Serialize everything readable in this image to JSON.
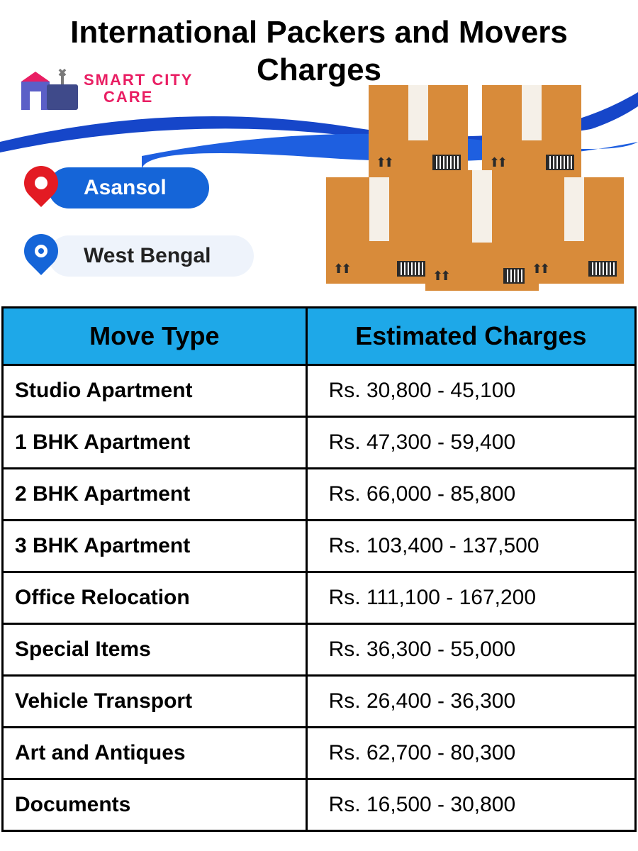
{
  "title": "International Packers and Movers Charges",
  "logo": {
    "line1": "SMART CITY",
    "line2": "CARE",
    "brand_color": "#e91e63"
  },
  "swoosh": {
    "color1": "#1646c9",
    "color2": "#ffffff",
    "color3": "#1e5fe0"
  },
  "location": {
    "city": "Asansol",
    "state": "West Bengal",
    "pin_city_color": "#e31b23",
    "pin_state_color": "#1565d8",
    "pill_primary_bg": "#1565d8",
    "pill_secondary_bg": "#eef3fb"
  },
  "boxes": {
    "fill": "#d88b3a",
    "top": "#e8a85a",
    "tape": "#f5f0e8"
  },
  "table": {
    "header_bg": "#1ea8e8",
    "border_color": "#000000",
    "header_fontsize": 36,
    "cell_fontsize": 30,
    "columns": [
      "Move Type",
      "Estimated Charges"
    ],
    "rows": [
      [
        "Studio Apartment",
        "Rs. 30,800 - 45,100"
      ],
      [
        "1 BHK Apartment",
        "Rs. 47,300 - 59,400"
      ],
      [
        "2 BHK Apartment",
        "Rs. 66,000 - 85,800"
      ],
      [
        "3 BHK Apartment",
        "Rs. 103,400 - 137,500"
      ],
      [
        "Office Relocation",
        "Rs. 111,100 - 167,200"
      ],
      [
        "Special Items",
        "Rs. 36,300 - 55,000"
      ],
      [
        "Vehicle Transport",
        "Rs. 26,400 - 36,300"
      ],
      [
        "Art and Antiques",
        "Rs. 62,700 - 80,300"
      ],
      [
        "Documents",
        "Rs. 16,500 - 30,800"
      ]
    ]
  }
}
